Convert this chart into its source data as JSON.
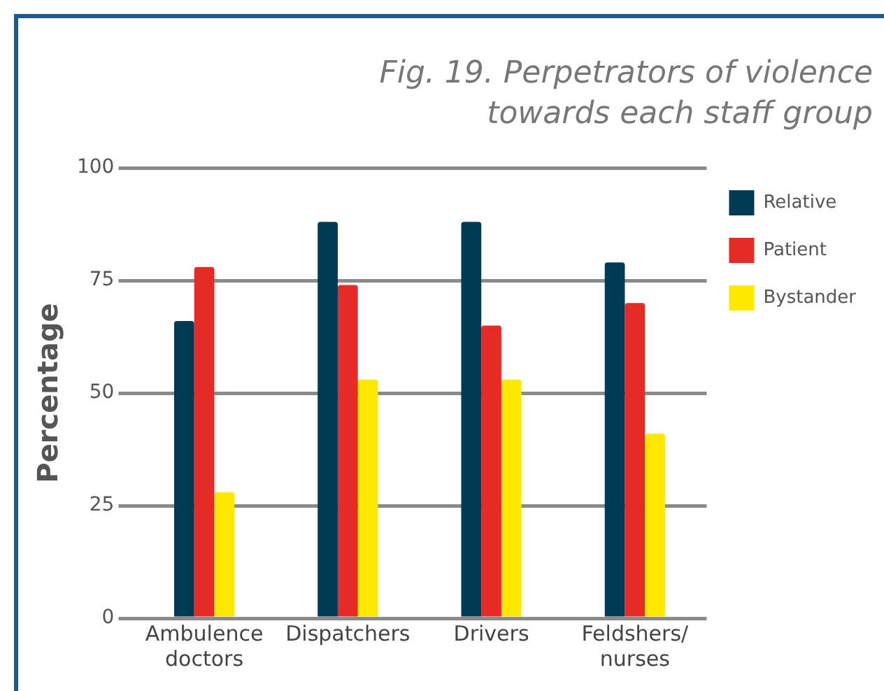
{
  "chart_data": {
    "type": "bar",
    "title": "Fig. 19. Perpetrators of violence towards each staff group",
    "ylabel": "Percentage",
    "categories": [
      "Ambulence doctors",
      "Dispatchers",
      "Drivers",
      "Feldshers/ nurses"
    ],
    "series": [
      {
        "name": "Relative",
        "color": "#003a54",
        "values": [
          66,
          88,
          88,
          79
        ]
      },
      {
        "name": "Patient",
        "color": "#e52b24",
        "values": [
          78,
          74,
          65,
          70
        ]
      },
      {
        "name": "Bystander",
        "color": "#ffe800",
        "values": [
          28,
          53,
          53,
          41
        ]
      }
    ],
    "ylim": [
      0,
      100
    ],
    "yticks": [
      0,
      25,
      50,
      75,
      100
    ],
    "grid": "y",
    "legend": "right"
  }
}
